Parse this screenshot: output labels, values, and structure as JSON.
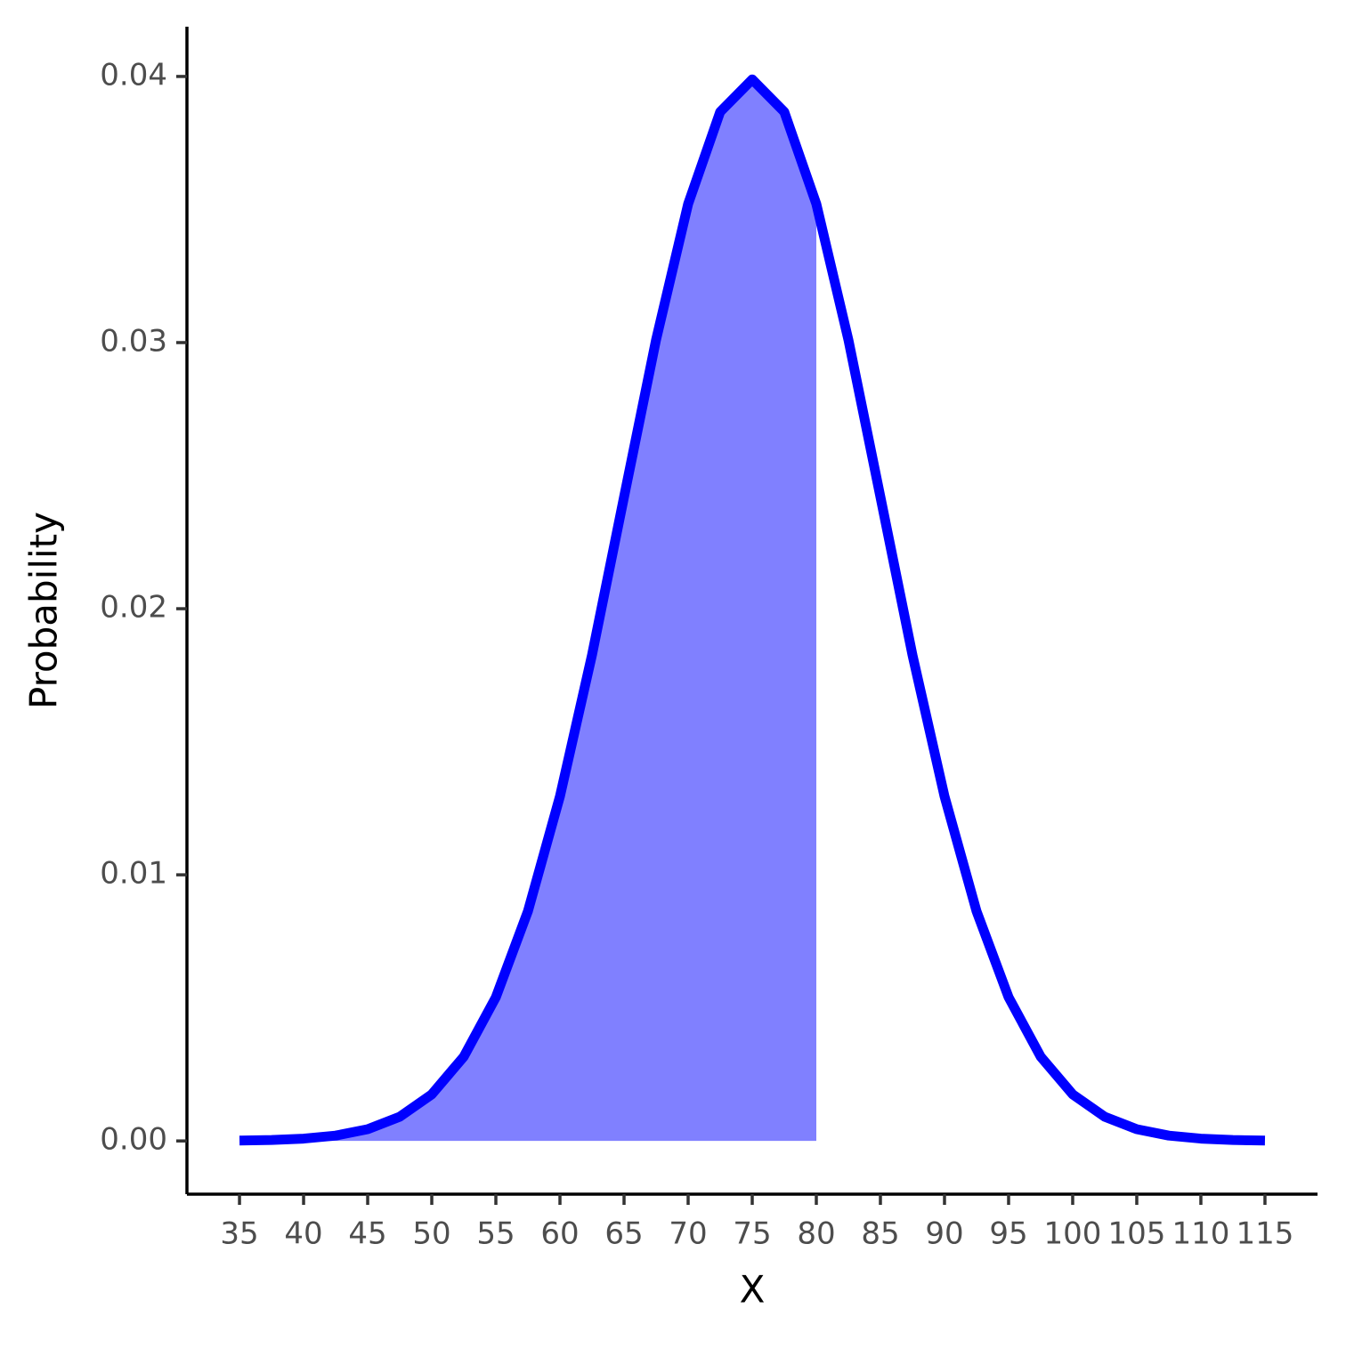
{
  "chart_data": {
    "type": "line",
    "x_label": "X",
    "y_label": "Probability",
    "xlim": [
      30.9,
      119.1
    ],
    "ylim": [
      -0.002,
      0.04187
    ],
    "xticks": [
      35,
      40,
      45,
      50,
      55,
      60,
      65,
      70,
      75,
      80,
      85,
      90,
      95,
      100,
      105,
      110,
      115
    ],
    "yticks": [
      {
        "value": 0,
        "label": "0.00"
      },
      0.01,
      0.02,
      0.03,
      0.04
    ],
    "grid": false,
    "series": [
      {
        "kind": "area",
        "color": "#8080ff",
        "x": [
          35,
          37.5,
          40,
          42.5,
          45,
          47.5,
          50,
          52.5,
          55,
          57.5,
          60,
          62.5,
          65,
          67.5,
          70,
          72.5,
          75,
          77.5,
          80
        ],
        "values": [
          1.3e-05,
          3.5e-05,
          8.7e-05,
          0.0002,
          0.00044,
          0.00091,
          0.00175,
          0.00317,
          0.0054,
          0.00863,
          0.01295,
          0.01826,
          0.0242,
          0.03011,
          0.03521,
          0.03867,
          0.03989,
          0.03867,
          0.03521
        ]
      },
      {
        "kind": "line",
        "color": "#0000ff",
        "x": [
          35,
          37.5,
          40,
          42.5,
          45,
          47.5,
          50,
          52.5,
          55,
          57.5,
          60,
          62.5,
          65,
          67.5,
          70,
          72.5,
          75,
          77.5,
          80,
          82.5,
          85,
          87.5,
          90,
          92.5,
          95,
          97.5,
          100,
          102.5,
          105,
          107.5,
          110,
          112.5,
          115
        ],
        "values": [
          1.3e-05,
          3.5e-05,
          8.7e-05,
          0.0002,
          0.00044,
          0.00091,
          0.00175,
          0.00317,
          0.0054,
          0.00863,
          0.01295,
          0.01826,
          0.0242,
          0.03011,
          0.03521,
          0.03867,
          0.03989,
          0.03867,
          0.03521,
          0.03011,
          0.0242,
          0.01826,
          0.01295,
          0.00863,
          0.0054,
          0.00317,
          0.00175,
          0.00091,
          0.00044,
          0.0002,
          8.7e-05,
          3.5e-05,
          1.3e-05
        ]
      }
    ]
  }
}
